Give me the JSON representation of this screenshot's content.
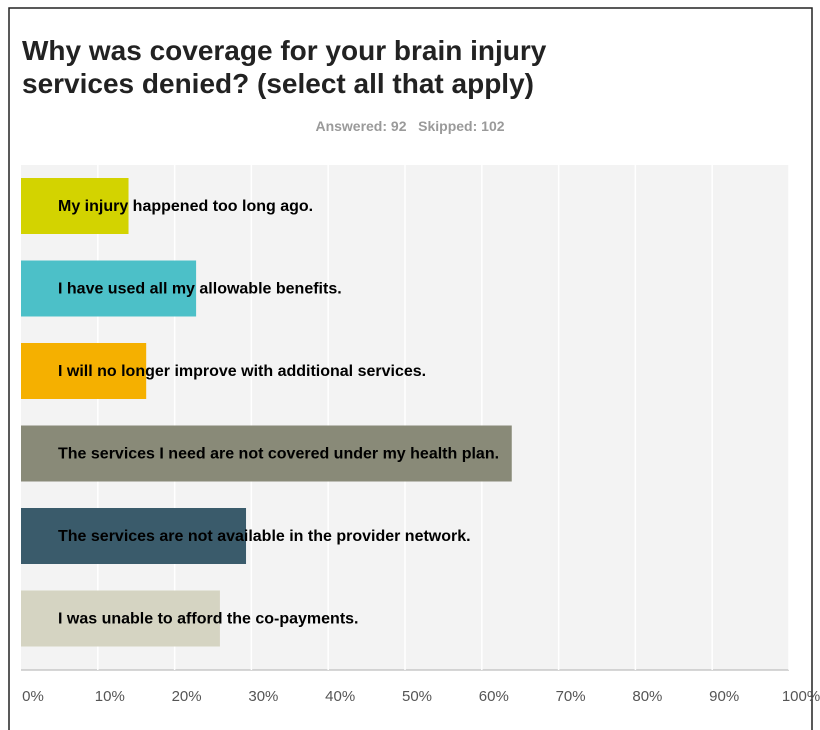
{
  "chart_data": {
    "type": "bar",
    "orientation": "horizontal",
    "title": "Why was coverage for your brain injury services denied? (select all that apply)",
    "subtitle": "Answered: 92   Skipped: 102",
    "categories": [
      "My injury happened too long ago.",
      "I have used all my allowable benefits.",
      "I will no longer improve with additional services.",
      "The services I need are not covered under my health plan.",
      "The services are not available in the provider network.",
      "I was unable to afford the co-payments."
    ],
    "values": [
      14,
      22.8,
      16.3,
      63.9,
      29.3,
      25.9
    ],
    "colors": [
      "#d3d300",
      "#4cc0c8",
      "#f5b000",
      "#898a78",
      "#3a5b6b",
      "#d5d4c2"
    ],
    "xlim": [
      0,
      100
    ],
    "xticks": [
      {
        "value": 0,
        "label": "0%"
      },
      {
        "value": 10,
        "label": "10%"
      },
      {
        "value": 20,
        "label": "20%"
      },
      {
        "value": 30,
        "label": "30%"
      },
      {
        "value": 40,
        "label": "40%"
      },
      {
        "value": 50,
        "label": "50%"
      },
      {
        "value": 60,
        "label": "60%"
      },
      {
        "value": 70,
        "label": "70%"
      },
      {
        "value": 80,
        "label": "80%"
      },
      {
        "value": 90,
        "label": "90%"
      },
      {
        "value": 100,
        "label": "100%"
      }
    ],
    "grid": true
  }
}
